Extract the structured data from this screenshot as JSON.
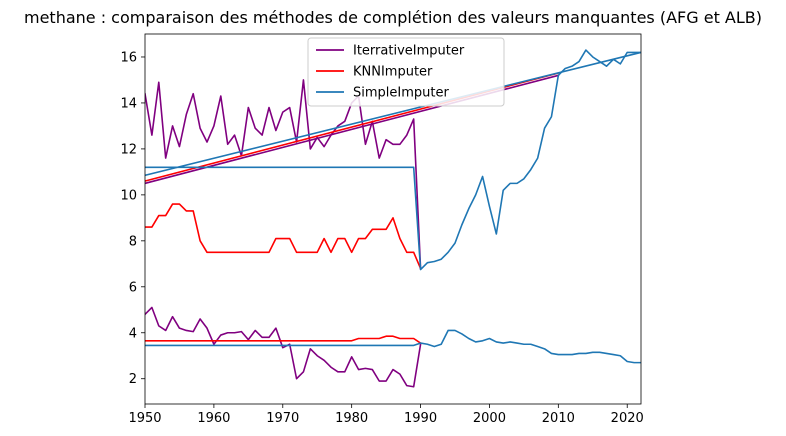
{
  "chart_data": {
    "type": "line",
    "title": "methane : comparaison des méthodes de complétion des valeurs manquantes (AFG et ALB)",
    "xlim": [
      1950,
      2022
    ],
    "ylim": [
      0.9,
      17.0
    ],
    "x_ticks": [
      1950,
      1960,
      1970,
      1980,
      1990,
      2000,
      2010,
      2020
    ],
    "y_ticks": [
      2,
      4,
      6,
      8,
      10,
      12,
      14,
      16
    ],
    "legend_position": "top-center",
    "grid": false,
    "series": [
      {
        "name": "IterrativeImputer",
        "color": "#800080",
        "segments": [
          [
            [
              1950,
              14.4
            ],
            [
              1951,
              12.6
            ],
            [
              1952,
              14.9
            ],
            [
              1953,
              11.6
            ],
            [
              1954,
              13.0
            ],
            [
              1955,
              12.1
            ],
            [
              1956,
              13.5
            ],
            [
              1957,
              14.4
            ],
            [
              1958,
              12.9
            ],
            [
              1959,
              12.3
            ],
            [
              1960,
              13.0
            ],
            [
              1961,
              14.3
            ],
            [
              1962,
              12.2
            ],
            [
              1963,
              12.6
            ],
            [
              1964,
              11.7
            ],
            [
              1965,
              13.8
            ],
            [
              1966,
              12.9
            ],
            [
              1967,
              12.6
            ],
            [
              1968,
              13.8
            ],
            [
              1969,
              12.8
            ],
            [
              1970,
              13.6
            ],
            [
              1971,
              13.8
            ],
            [
              1972,
              12.3
            ],
            [
              1973,
              15.0
            ],
            [
              1974,
              12.0
            ],
            [
              1975,
              12.5
            ],
            [
              1976,
              12.1
            ],
            [
              1977,
              12.6
            ],
            [
              1978,
              13.0
            ],
            [
              1979,
              13.2
            ],
            [
              1980,
              14.0
            ],
            [
              1981,
              14.3
            ],
            [
              1982,
              12.2
            ],
            [
              1983,
              13.2
            ],
            [
              1984,
              11.6
            ],
            [
              1985,
              12.4
            ],
            [
              1986,
              12.2
            ],
            [
              1987,
              12.2
            ],
            [
              1988,
              12.6
            ],
            [
              1989,
              13.3
            ],
            [
              1990,
              6.8
            ]
          ],
          [
            [
              1950,
              4.8
            ],
            [
              1951,
              5.1
            ],
            [
              1952,
              4.3
            ],
            [
              1953,
              4.1
            ],
            [
              1954,
              4.7
            ],
            [
              1955,
              4.2
            ],
            [
              1956,
              4.1
            ],
            [
              1957,
              4.05
            ],
            [
              1958,
              4.6
            ],
            [
              1959,
              4.2
            ],
            [
              1960,
              3.5
            ],
            [
              1961,
              3.9
            ],
            [
              1962,
              4.0
            ],
            [
              1963,
              4.0
            ],
            [
              1964,
              4.05
            ],
            [
              1965,
              3.7
            ],
            [
              1966,
              4.1
            ],
            [
              1967,
              3.8
            ],
            [
              1968,
              3.8
            ],
            [
              1969,
              4.2
            ],
            [
              1970,
              3.35
            ],
            [
              1971,
              3.5
            ],
            [
              1972,
              2.0
            ],
            [
              1973,
              2.3
            ],
            [
              1974,
              3.3
            ],
            [
              1975,
              3.0
            ],
            [
              1976,
              2.8
            ],
            [
              1977,
              2.5
            ],
            [
              1978,
              2.3
            ],
            [
              1979,
              2.3
            ],
            [
              1980,
              2.95
            ],
            [
              1981,
              2.4
            ],
            [
              1982,
              2.45
            ],
            [
              1983,
              2.4
            ],
            [
              1984,
              1.9
            ],
            [
              1985,
              1.9
            ],
            [
              1986,
              2.4
            ],
            [
              1987,
              2.2
            ],
            [
              1988,
              1.7
            ],
            [
              1989,
              1.65
            ],
            [
              1990,
              3.5
            ]
          ],
          [
            [
              1950,
              10.5
            ],
            [
              2010,
              15.2
            ]
          ]
        ]
      },
      {
        "name": "KNNImputer",
        "color": "#ff0000",
        "segments": [
          [
            [
              1950,
              8.6
            ],
            [
              1951,
              8.6
            ],
            [
              1952,
              9.1
            ],
            [
              1953,
              9.1
            ],
            [
              1954,
              9.6
            ],
            [
              1955,
              9.6
            ],
            [
              1956,
              9.3
            ],
            [
              1957,
              9.3
            ],
            [
              1958,
              8.0
            ],
            [
              1959,
              7.5
            ],
            [
              1960,
              7.5
            ],
            [
              1961,
              7.5
            ],
            [
              1962,
              7.5
            ],
            [
              1963,
              7.5
            ],
            [
              1964,
              7.5
            ],
            [
              1965,
              7.5
            ],
            [
              1966,
              7.5
            ],
            [
              1967,
              7.5
            ],
            [
              1968,
              7.5
            ],
            [
              1969,
              8.1
            ],
            [
              1970,
              8.1
            ],
            [
              1971,
              8.1
            ],
            [
              1972,
              7.5
            ],
            [
              1973,
              7.5
            ],
            [
              1974,
              7.5
            ],
            [
              1975,
              7.5
            ],
            [
              1976,
              8.1
            ],
            [
              1977,
              7.5
            ],
            [
              1978,
              8.1
            ],
            [
              1979,
              8.1
            ],
            [
              1980,
              7.5
            ],
            [
              1981,
              8.1
            ],
            [
              1982,
              8.1
            ],
            [
              1983,
              8.5
            ],
            [
              1984,
              8.5
            ],
            [
              1985,
              8.5
            ],
            [
              1986,
              9.0
            ],
            [
              1987,
              8.1
            ],
            [
              1988,
              7.5
            ],
            [
              1989,
              7.5
            ],
            [
              1990,
              6.8
            ]
          ],
          [
            [
              1950,
              3.65
            ],
            [
              1980,
              3.65
            ],
            [
              1981,
              3.75
            ],
            [
              1984,
              3.75
            ],
            [
              1985,
              3.85
            ],
            [
              1986,
              3.85
            ],
            [
              1987,
              3.75
            ],
            [
              1989,
              3.75
            ],
            [
              1990,
              3.55
            ]
          ],
          [
            [
              1950,
              10.6
            ],
            [
              2010,
              15.3
            ]
          ]
        ]
      },
      {
        "name": "SimpleImputer",
        "color": "#1f77b4",
        "segments": [
          [
            [
              1950,
              11.2
            ],
            [
              1989,
              11.2
            ],
            [
              1990,
              6.75
            ],
            [
              1991,
              7.05
            ],
            [
              1992,
              7.1
            ],
            [
              1993,
              7.2
            ],
            [
              1994,
              7.5
            ],
            [
              1995,
              7.9
            ],
            [
              1996,
              8.7
            ],
            [
              1997,
              9.4
            ],
            [
              1998,
              10.0
            ],
            [
              1999,
              10.8
            ],
            [
              2000,
              9.5
            ],
            [
              2001,
              8.3
            ],
            [
              2002,
              10.2
            ],
            [
              2003,
              10.5
            ],
            [
              2004,
              10.5
            ],
            [
              2005,
              10.7
            ],
            [
              2006,
              11.1
            ],
            [
              2007,
              11.6
            ],
            [
              2008,
              12.9
            ],
            [
              2009,
              13.4
            ],
            [
              2010,
              15.2
            ],
            [
              2011,
              15.5
            ],
            [
              2012,
              15.6
            ],
            [
              2013,
              15.8
            ],
            [
              2014,
              16.3
            ],
            [
              2015,
              16.0
            ],
            [
              2016,
              15.8
            ],
            [
              2017,
              15.6
            ],
            [
              2018,
              15.9
            ],
            [
              2019,
              15.7
            ],
            [
              2020,
              16.2
            ],
            [
              2021,
              16.2
            ],
            [
              2022,
              16.2
            ]
          ],
          [
            [
              1950,
              3.45
            ],
            [
              1989,
              3.45
            ],
            [
              1990,
              3.55
            ],
            [
              1991,
              3.5
            ],
            [
              1992,
              3.4
            ],
            [
              1993,
              3.5
            ],
            [
              1994,
              4.1
            ],
            [
              1995,
              4.1
            ],
            [
              1996,
              3.95
            ],
            [
              1997,
              3.75
            ],
            [
              1998,
              3.6
            ],
            [
              1999,
              3.65
            ],
            [
              2000,
              3.75
            ],
            [
              2001,
              3.6
            ],
            [
              2002,
              3.55
            ],
            [
              2003,
              3.6
            ],
            [
              2004,
              3.55
            ],
            [
              2005,
              3.5
            ],
            [
              2006,
              3.5
            ],
            [
              2007,
              3.4
            ],
            [
              2008,
              3.3
            ],
            [
              2009,
              3.1
            ],
            [
              2010,
              3.05
            ],
            [
              2011,
              3.05
            ],
            [
              2012,
              3.05
            ],
            [
              2013,
              3.1
            ],
            [
              2014,
              3.1
            ],
            [
              2015,
              3.15
            ],
            [
              2016,
              3.15
            ],
            [
              2017,
              3.1
            ],
            [
              2018,
              3.05
            ],
            [
              2019,
              3.0
            ],
            [
              2020,
              2.75
            ],
            [
              2021,
              2.7
            ],
            [
              2022,
              2.7
            ]
          ],
          [
            [
              1950,
              10.85
            ],
            [
              2022,
              16.2
            ]
          ]
        ]
      }
    ]
  }
}
